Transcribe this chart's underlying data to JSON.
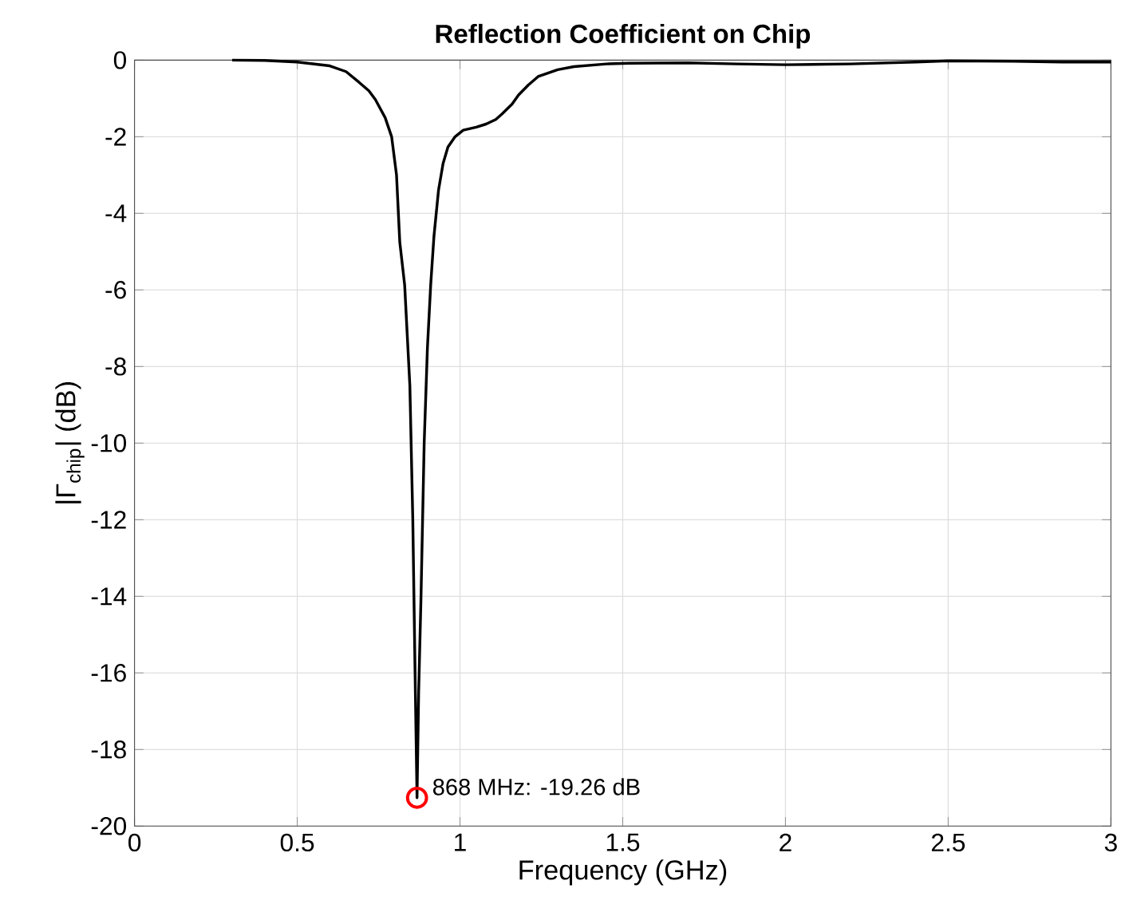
{
  "chart_data": {
    "type": "line",
    "title": "Reflection Coefficient on Chip",
    "xlabel": "Frequency (GHz)",
    "ylabel": "|Γ$_{chip}$| (dB)",
    "xlim": [
      0,
      3
    ],
    "ylim": [
      -20,
      0
    ],
    "xticks": [
      0,
      0.5,
      1,
      1.5,
      2,
      2.5,
      3
    ],
    "yticks": [
      -20,
      -18,
      -16,
      -14,
      -12,
      -10,
      -8,
      -6,
      -4,
      -2,
      0
    ],
    "grid": true,
    "marker": "none",
    "line_style": "solid",
    "series": [
      {
        "color": "#000000",
        "x": [
          0.3,
          0.4,
          0.5,
          0.6,
          0.65,
          0.69,
          0.72,
          0.74,
          0.77,
          0.79,
          0.805,
          0.815,
          0.83,
          0.846,
          0.855,
          0.862,
          0.868,
          0.873,
          0.88,
          0.89,
          0.9,
          0.91,
          0.92,
          0.934,
          0.948,
          0.963,
          0.985,
          1.01,
          1.05,
          1.08,
          1.11,
          1.13,
          1.16,
          1.18,
          1.21,
          1.24,
          1.3,
          1.35,
          1.45,
          1.52,
          1.7,
          1.85,
          2.0,
          2.2,
          2.4,
          2.5,
          2.7,
          2.85,
          3.0
        ],
        "values": [
          0,
          -0.01,
          -0.05,
          -0.15,
          -0.3,
          -0.58,
          -0.8,
          -1.03,
          -1.5,
          -2.0,
          -3.0,
          -4.75,
          -5.87,
          -8.5,
          -12,
          -16,
          -19.26,
          -16.5,
          -14.1,
          -10,
          -7.5,
          -5.87,
          -4.6,
          -3.4,
          -2.7,
          -2.27,
          -2.0,
          -1.83,
          -1.75,
          -1.67,
          -1.55,
          -1.4,
          -1.15,
          -0.91,
          -0.65,
          -0.43,
          -0.25,
          -0.17,
          -0.1,
          -0.08,
          -0.07,
          -0.1,
          -0.12,
          -0.1,
          -0.05,
          -0.02,
          -0.03,
          -0.05,
          -0.05
        ]
      }
    ],
    "annotations": [
      {
        "text": "868 MHz: -19.26 dB",
        "x": 0.868,
        "y": -19.26
      }
    ]
  }
}
